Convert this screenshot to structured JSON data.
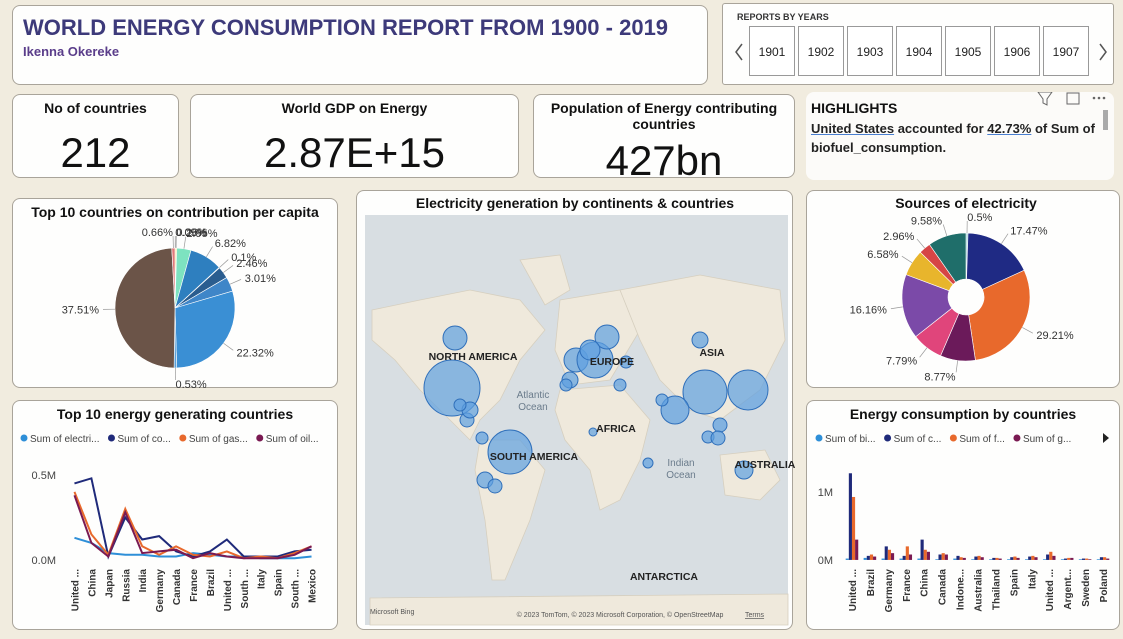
{
  "header": {
    "title": "WORLD ENERGY CONSUMPTION REPORT FROM 1900 - 2019",
    "author": "Ikenna Okereke"
  },
  "slicer": {
    "title": "REPORTS BY YEARS",
    "items": [
      "1901",
      "1902",
      "1903",
      "1904",
      "1905",
      "1906",
      "1907"
    ]
  },
  "cards": [
    {
      "label": "No of countries",
      "value": "212"
    },
    {
      "label": "World GDP on Energy",
      "value": "2.87E+15"
    },
    {
      "label": "Population of Energy contributing countries",
      "value": "427bn"
    }
  ],
  "highlights": {
    "title": "HIGHLIGHTS",
    "parts": [
      "United States",
      " accounted for ",
      "42.73%",
      " of Sum of biofuel_consumption."
    ]
  },
  "chart_data": [
    {
      "type": "pie",
      "title": "Top 10 countries on contribution per capita",
      "values": [
        0.09,
        0.26,
        2.95,
        6.82,
        0.1,
        2.46,
        3.01,
        22.32,
        0.53,
        37.51,
        0.66
      ],
      "value_labels": [
        "0.09%",
        "0.26%",
        "2.95%",
        "6.82%",
        "0.1%",
        "2.46%",
        "3.01%",
        "22.32%",
        "0.53%",
        "37.51%",
        "0.66%"
      ],
      "colors": [
        "#e8c84a",
        "#f2d35c",
        "#7de3c0",
        "#2e7fbf",
        "#3a6fa8",
        "#2a5d8f",
        "#3f86c8",
        "#3a8fd4",
        "#5aa0d8",
        "#6b5448",
        "#e07a7a"
      ]
    },
    {
      "type": "map",
      "title": "Electricity generation by continents & countries",
      "labels": [
        "NORTH AMERICA",
        "Atlantic",
        "Ocean",
        "EUROPE",
        "ASIA",
        "AFRICA",
        "SOUTH AMERICA",
        "Indian",
        "Ocean",
        "AUSTRALIA",
        "ANTARCTICA"
      ],
      "attribution": [
        "Microsoft Bing",
        "© 2023 TomTom, © 2023 Microsoft Corporation, © OpenStreetMap",
        "Terms"
      ]
    },
    {
      "type": "pie",
      "title": "Sources of electricity",
      "donut": true,
      "values": [
        0.5,
        17.47,
        29.21,
        8.77,
        7.79,
        16.16,
        6.58,
        2.96,
        9.58
      ],
      "value_labels": [
        "0.5%",
        "17.47%",
        "29.21%",
        "8.77%",
        "7.79%",
        "16.16%",
        "6.58%",
        "2.96%",
        "9.58%"
      ],
      "colors": [
        "#9ad0d8",
        "#1f2a84",
        "#e8692c",
        "#6b1a5a",
        "#e0457b",
        "#7b4aa8",
        "#e8b52c",
        "#d64545",
        "#1f6e6a"
      ]
    },
    {
      "type": "line",
      "title": "Top 10 energy generating countries",
      "categories": [
        "United ...",
        "China",
        "Japan",
        "Russia",
        "India",
        "Germany",
        "Canada",
        "France",
        "Brazil",
        "United ...",
        "South ...",
        "Italy",
        "Spain",
        "South ...",
        "Mexico"
      ],
      "series": [
        {
          "name": "Sum of electri...",
          "color": "#2e8fd8",
          "values": [
            130000,
            100000,
            40000,
            30000,
            30000,
            20000,
            20000,
            40000,
            30000,
            20000,
            20000,
            10000,
            10000,
            10000,
            20000
          ]
        },
        {
          "name": "Sum of co...",
          "color": "#1f2a7a",
          "values": [
            450000,
            480000,
            20000,
            250000,
            120000,
            140000,
            50000,
            20000,
            50000,
            120000,
            20000,
            20000,
            20000,
            50000,
            60000
          ]
        },
        {
          "name": "Sum of gas...",
          "color": "#e8692c",
          "values": [
            400000,
            150000,
            30000,
            300000,
            80000,
            30000,
            80000,
            30000,
            20000,
            50000,
            10000,
            20000,
            10000,
            40000,
            80000
          ]
        },
        {
          "name": "Sum of oil...",
          "color": "#7a1a52",
          "values": [
            380000,
            100000,
            20000,
            280000,
            40000,
            50000,
            60000,
            10000,
            40000,
            20000,
            10000,
            10000,
            10000,
            30000,
            80000
          ]
        }
      ],
      "ylim": [
        -30000,
        635000
      ],
      "yticks": [
        {
          "value": 500000,
          "label": "0.5M"
        },
        {
          "value": 0,
          "label": "0.0M"
        }
      ]
    },
    {
      "type": "bar",
      "title": "Energy consumption by countries",
      "categories": [
        "United ...",
        "Brazil",
        "Germany",
        "France",
        "China",
        "Canada",
        "Indone...",
        "Australia",
        "Thailand",
        "Spain",
        "Italy",
        "United ...",
        "Argent...",
        "Sweden",
        "Poland"
      ],
      "series": [
        {
          "name": "Sum of bi...",
          "color": "#2e8fd8",
          "values": [
            20000,
            30000,
            20000,
            20000,
            20000,
            10000,
            20000,
            10000,
            10000,
            10000,
            10000,
            10000,
            10000,
            10000,
            10000
          ]
        },
        {
          "name": "Sum of c...",
          "color": "#1f2a7a",
          "values": [
            1280000,
            60000,
            200000,
            60000,
            300000,
            80000,
            60000,
            50000,
            30000,
            40000,
            50000,
            80000,
            20000,
            20000,
            40000
          ]
        },
        {
          "name": "Sum of f...",
          "color": "#e8692c",
          "values": [
            930000,
            80000,
            150000,
            200000,
            150000,
            100000,
            40000,
            60000,
            30000,
            50000,
            60000,
            120000,
            30000,
            20000,
            40000
          ]
        },
        {
          "name": "Sum of g...",
          "color": "#7a1a52",
          "values": [
            300000,
            50000,
            100000,
            80000,
            120000,
            80000,
            30000,
            40000,
            20000,
            30000,
            40000,
            60000,
            30000,
            10000,
            20000
          ]
        }
      ],
      "ylim": [
        -75000,
        1550000
      ],
      "yticks": [
        {
          "value": 1000000,
          "label": "1M"
        },
        {
          "value": 0,
          "label": "0M"
        }
      ]
    }
  ]
}
